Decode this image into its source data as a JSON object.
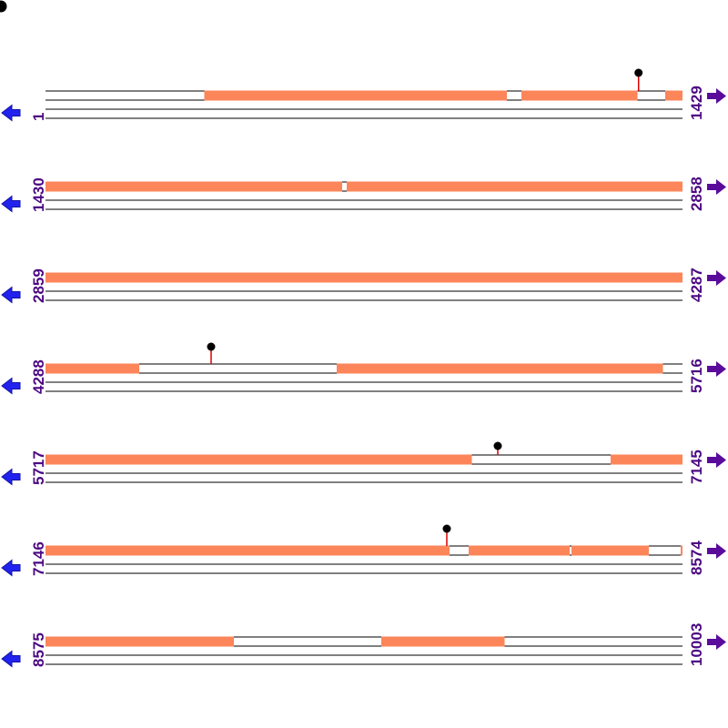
{
  "view": {
    "total_range_start": "1",
    "total_range_end": "10003",
    "rows_visible": 7
  },
  "colors": {
    "background": "#FFFFFF",
    "feature_orange": "#FC855A",
    "frame_line_black": "#000000",
    "nav_left_blue": "#2222EE",
    "nav_left_blue_edge": "#1111AA",
    "nav_right_purple": "#5A0B9B",
    "label_purple": "#4B0882",
    "marker_stem_red": "#DD0000",
    "marker_dot_black": "#000000"
  },
  "icons": {
    "prev_arrow": "left-arrow-icon",
    "next_arrow": "right-arrow-icon",
    "marker": "lollipop-marker-icon",
    "corner": "clipped-marker-dot-icon"
  },
  "tracks": [
    {
      "start_label": "1",
      "end_label": "1429",
      "features": [
        {
          "from": 0.249,
          "to": 0.724
        },
        {
          "from": 0.747,
          "to": 0.929
        },
        {
          "from": 0.973,
          "to": 1.0
        }
      ],
      "markers": [
        {
          "at": 0.931,
          "rise": 20
        }
      ]
    },
    {
      "start_label": "1430",
      "end_label": "2858",
      "features": [
        {
          "from": 0.0,
          "to": 0.466
        },
        {
          "from": 0.473,
          "to": 1.0
        }
      ],
      "markers": []
    },
    {
      "start_label": "2859",
      "end_label": "4287",
      "features": [
        {
          "from": 0.0,
          "to": 1.0
        }
      ],
      "markers": []
    },
    {
      "start_label": "4288",
      "end_label": "5716",
      "features": [
        {
          "from": 0.0,
          "to": 0.147
        },
        {
          "from": 0.457,
          "to": 0.969
        }
      ],
      "markers": [
        {
          "at": 0.26,
          "rise": 19
        }
      ]
    },
    {
      "start_label": "5717",
      "end_label": "7145",
      "features": [
        {
          "from": 0.0,
          "to": 0.669
        },
        {
          "from": 0.887,
          "to": 1.0
        }
      ],
      "markers": [
        {
          "at": 0.71,
          "rise": 10
        }
      ]
    },
    {
      "start_label": "7146",
      "end_label": "8574",
      "features": [
        {
          "from": 0.0,
          "to": 0.634
        },
        {
          "from": 0.664,
          "to": 0.823
        },
        {
          "from": 0.826,
          "to": 0.947
        },
        {
          "from": 0.997,
          "to": 1.0
        }
      ],
      "markers": [
        {
          "at": 0.63,
          "rise": 19
        }
      ]
    },
    {
      "start_label": "8575",
      "end_label": "10003",
      "features": [
        {
          "from": 0.0,
          "to": 0.296
        },
        {
          "from": 0.527,
          "to": 0.721
        }
      ],
      "markers": []
    }
  ]
}
